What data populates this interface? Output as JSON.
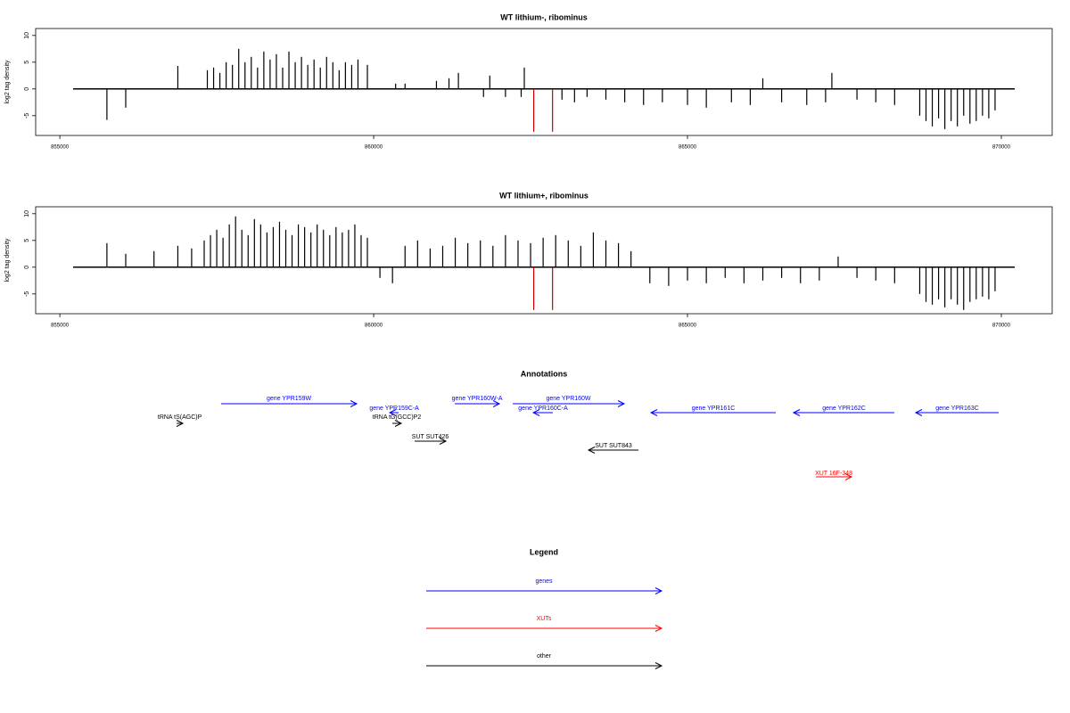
{
  "chart_data": [
    {
      "type": "bar",
      "title": "WT lithium-, ribominus",
      "ylabel": "log2 tag density",
      "xlim": [
        854615,
        870810
      ],
      "xticks": [
        855000,
        860000,
        865000,
        870000
      ],
      "ylim": [
        -8.7,
        11.3
      ],
      "yticks": [
        -5,
        0,
        5,
        10
      ],
      "series": [
        {
          "color": "#000000",
          "x": [
            855750,
            856050,
            856880,
            857350,
            857450,
            857550,
            857650,
            857750,
            857850,
            857950,
            858050,
            858150,
            858250,
            858350,
            858450,
            858550,
            858650,
            858750,
            858850,
            858950,
            859050,
            859150,
            859250,
            859350,
            859450,
            859550,
            859650,
            859750,
            859900,
            860350,
            860500,
            861000,
            861200,
            861350,
            861750,
            861850,
            862100,
            862350,
            862400,
            863000,
            863200,
            863400,
            863700,
            864000,
            864300,
            864600,
            865000,
            865300,
            865700,
            866000,
            866200,
            866500,
            866900,
            867200,
            867300,
            867700,
            868000,
            868300,
            868700,
            868800,
            868900,
            869000,
            869100,
            869200,
            869300,
            869400,
            869500,
            869600,
            869700,
            869800,
            869900
          ],
          "values": [
            -5.8,
            -3.5,
            4.3,
            3.5,
            4,
            3,
            5,
            4.5,
            7.5,
            5,
            6,
            4,
            7,
            5.5,
            6.5,
            4,
            7,
            5,
            6,
            4.5,
            5.5,
            4,
            6,
            5,
            3.5,
            5,
            4.5,
            5.5,
            4.5,
            1,
            1,
            1.5,
            2,
            3,
            -1.5,
            2.5,
            -1.5,
            -1.5,
            4,
            -2,
            -2.5,
            -1.5,
            -2,
            -2.5,
            -3,
            -2.5,
            -3,
            -3.5,
            -2.5,
            -3,
            2,
            -2.5,
            -3,
            -2.5,
            3,
            -2,
            -2.5,
            -3,
            -5,
            -6,
            -7,
            -5.5,
            -7.5,
            -6,
            -7,
            -5,
            -6.5,
            -6,
            -5,
            -5.5,
            -4
          ]
        },
        {
          "color": "#cc0000",
          "x": [
            862550,
            862850
          ],
          "values": [
            -8,
            -8
          ]
        }
      ]
    },
    {
      "type": "bar",
      "title": "WT lithium+, ribominus",
      "ylabel": "log2 tag density",
      "xlim": [
        854615,
        870810
      ],
      "xticks": [
        855000,
        860000,
        865000,
        870000
      ],
      "ylim": [
        -8.7,
        11.3
      ],
      "yticks": [
        -5,
        0,
        5,
        10
      ],
      "series": [
        {
          "color": "#000000",
          "x": [
            855750,
            856050,
            856500,
            856880,
            857100,
            857300,
            857400,
            857500,
            857600,
            857700,
            857800,
            857900,
            858000,
            858100,
            858200,
            858300,
            858400,
            858500,
            858600,
            858700,
            858800,
            858900,
            859000,
            859100,
            859200,
            859300,
            859400,
            859500,
            859600,
            859700,
            859800,
            859900,
            860100,
            860300,
            860500,
            860700,
            860900,
            861100,
            861300,
            861500,
            861700,
            861900,
            862100,
            862300,
            862500,
            862700,
            862900,
            863100,
            863300,
            863500,
            863700,
            863900,
            864100,
            864400,
            864700,
            865000,
            865300,
            865600,
            865900,
            866200,
            866500,
            866800,
            867100,
            867400,
            867700,
            868000,
            868300,
            868700,
            868800,
            868900,
            869000,
            869100,
            869200,
            869300,
            869400,
            869500,
            869600,
            869700,
            869800,
            869900
          ],
          "values": [
            4.5,
            2.5,
            3,
            4,
            3.5,
            5,
            6,
            7,
            5.5,
            8,
            9.5,
            7,
            6,
            9,
            8,
            6.5,
            7.5,
            8.5,
            7,
            6,
            8,
            7.5,
            6.5,
            8,
            7,
            6,
            7.5,
            6.5,
            7,
            8,
            6,
            5.5,
            -2,
            -3,
            4,
            5,
            3.5,
            4,
            5.5,
            4.5,
            5,
            4,
            6,
            5,
            4.5,
            5.5,
            6,
            5,
            4,
            6.5,
            5,
            4.5,
            3,
            -3,
            -3.5,
            -2.5,
            -3,
            -2,
            -3,
            -2.5,
            -2,
            -3,
            -2.5,
            2,
            -2,
            -2.5,
            -3,
            -5,
            -6.5,
            -7,
            -6,
            -7.5,
            -6,
            -7,
            -8,
            -6.5,
            -6,
            -5.5,
            -6,
            -4.5
          ]
        },
        {
          "color": "#cc0000",
          "x": [
            862550,
            862850
          ],
          "values": [
            -8,
            -8
          ]
        }
      ]
    },
    {
      "type": "annotation",
      "title": "Annotations",
      "xlim": [
        854615,
        870810
      ],
      "features": [
        {
          "label": "tRNA tS(AGC)P",
          "start": 856861,
          "end": 856960,
          "color": "#000000"
        },
        {
          "label": "gene YPR159W",
          "start": 857571,
          "end": 859730,
          "color": "#0000ff"
        },
        {
          "label": "gene YPR159C-A",
          "start": 860398,
          "end": 860256,
          "color": "#0000ff"
        },
        {
          "label": "tRNA tG(GCC)P2",
          "start": 860298,
          "end": 860440,
          "color": "#000000"
        },
        {
          "label": "gene YPR160W-A",
          "start": 861293,
          "end": 862003,
          "color": "#0000ff"
        },
        {
          "label": "gene YPR160W",
          "start": 862216,
          "end": 863991,
          "color": "#0000ff"
        },
        {
          "label": "gene YPR160C-A",
          "start": 862855,
          "end": 862543,
          "color": "#0000ff"
        },
        {
          "label": "SUT SUT426",
          "start": 860653,
          "end": 861151,
          "color": "#000000"
        },
        {
          "label": "SUT SUT843",
          "start": 864219,
          "end": 863423,
          "color": "#000000"
        },
        {
          "label": "gene YPR161C",
          "start": 866406,
          "end": 864418,
          "color": "#0000ff"
        },
        {
          "label": "gene YPR162C",
          "start": 868295,
          "end": 866690,
          "color": "#0000ff"
        },
        {
          "label": "gene YPR163C",
          "start": 869957,
          "end": 868636,
          "color": "#0000ff"
        },
        {
          "label": "XUT 16F-348",
          "start": 867046,
          "end": 867614,
          "color": "#ff0000"
        }
      ]
    },
    {
      "type": "legend",
      "title": "Legend",
      "entries": [
        {
          "name": "genes",
          "color": "#0000ff"
        },
        {
          "name": "XUTs",
          "color": "#ff0000"
        },
        {
          "name": "other",
          "color": "#000000"
        }
      ]
    }
  ]
}
